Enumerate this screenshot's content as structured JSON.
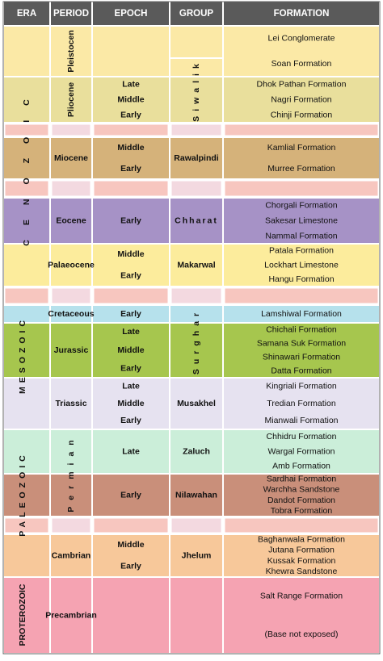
{
  "header": {
    "columns": [
      "ERA",
      "PERIOD",
      "EPOCH",
      "GROUP",
      "FORMATION"
    ]
  },
  "eras": [
    "CENOZOIC",
    "MESOZOIC",
    "PALEOZOIC",
    "PROTEROZOIC"
  ],
  "units": [
    {
      "period": "Pleistocen",
      "epochs": [],
      "formations": [
        "Lei Conglomerate",
        "Soan Formation"
      ]
    },
    {
      "period": "Pliocene",
      "epochs": [
        "Late",
        "Middle",
        "Early"
      ],
      "group": "Siwalik",
      "formations": [
        "Dhok Pathan Formation",
        "Nagri Formation",
        "Chinji Formation"
      ]
    },
    {
      "period": "Miocene",
      "epochs": [
        "Middle",
        "Early"
      ],
      "group": "Rawalpindi",
      "formations": [
        "Kamlial Formation",
        "Murree Formation"
      ]
    },
    {
      "period": "Eocene",
      "epochs": [
        "Early"
      ],
      "group": "Chharat",
      "formations": [
        "Chorgali Formation",
        "Sakesar Limestone",
        "Nammal Formation"
      ]
    },
    {
      "period": "Palaeocene",
      "epochs": [
        "Middle",
        "Early"
      ],
      "group": "Makarwal",
      "formations": [
        "Patala Formation",
        "Lockhart Limestone",
        "Hangu Formation"
      ]
    },
    {
      "period": "Cretaceous",
      "epochs": [
        "Early"
      ],
      "group": "Surghar",
      "formations": [
        "Lamshiwal Formation"
      ]
    },
    {
      "period": "Jurassic",
      "epochs": [
        "Late",
        "Middle",
        "Early"
      ],
      "formations": [
        "Chichali Formation",
        "Samana Suk Formation",
        "Shinawari Formation",
        "Datta Formation"
      ]
    },
    {
      "period": "Triassic",
      "epochs": [
        "Late",
        "Middle",
        "Early"
      ],
      "group": "Musakhel",
      "formations": [
        "Kingriali Formation",
        "Tredian Formation",
        "Mianwali Formation"
      ]
    },
    {
      "period": "Permian",
      "epochs": [
        "Late"
      ],
      "group": "Zaluch",
      "formations": [
        "Chhidru Formation",
        "Wargal Formation",
        "Amb Formation"
      ]
    },
    {
      "epochs": [
        "Early"
      ],
      "group": "Nilawahan",
      "formations": [
        "Sardhai Formation",
        "Warchha Sandstone",
        "Dandot Formation",
        "Tobra Formation"
      ]
    },
    {
      "period": "Cambrian",
      "epochs": [
        "Middle",
        "Early"
      ],
      "group": "Jhelum",
      "formations": [
        "Baghanwala Formation",
        "Jutana Formation",
        "Kussak Formation",
        "Khewra Sandstone"
      ]
    },
    {
      "period": "Precambrian",
      "epochs": [],
      "formations": [
        "Salt Range Formation",
        "(Base not exposed)"
      ]
    }
  ]
}
